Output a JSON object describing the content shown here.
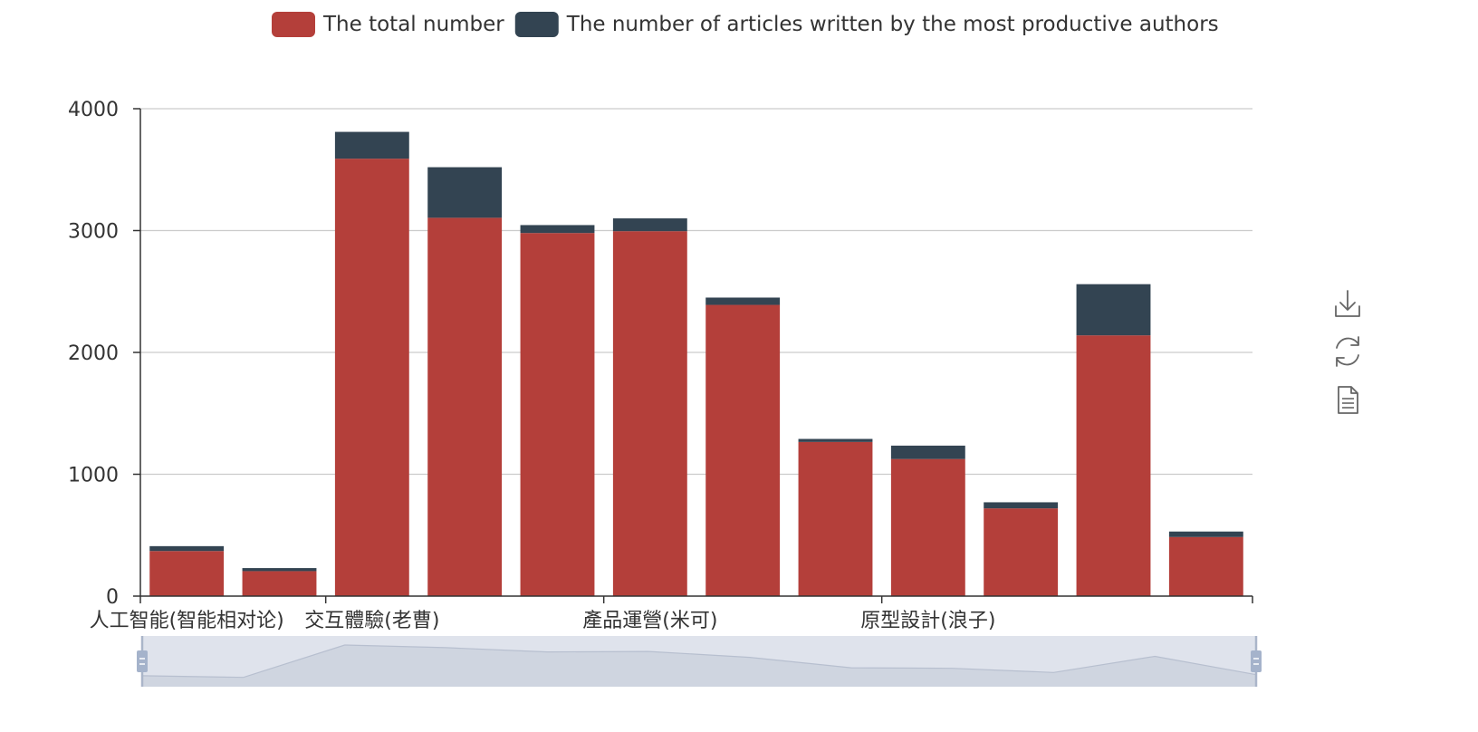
{
  "chart_data": {
    "type": "bar",
    "stacked": true,
    "categories": [
      "人工智能(智能相对论)",
      "",
      "交互體驗(老曹)",
      "",
      "",
      "產品運營(米可)",
      "",
      "",
      "原型設計(浪子)",
      "",
      "",
      ""
    ],
    "visible_axis_labels": [
      "人工智能(智能相对论)",
      "交互體驗(老曹)",
      "產品運營(米可)",
      "原型設計(浪子)"
    ],
    "series": [
      {
        "name": "The total number",
        "color": "#b43f3a",
        "values": [
          370,
          205,
          3590,
          3105,
          2980,
          2995,
          2390,
          1265,
          1125,
          720,
          2140,
          485
        ]
      },
      {
        "name": "The number of articles written by the most productive authors",
        "color": "#334452",
        "values": [
          40,
          25,
          220,
          415,
          65,
          105,
          60,
          25,
          110,
          50,
          420,
          45
        ]
      }
    ],
    "ylim": [
      0,
      4000
    ],
    "yticks": [
      "0",
      "1000",
      "2000",
      "3000",
      "4000"
    ],
    "grid": true,
    "legend_position": "top-center",
    "datazoom": {
      "enabled": true,
      "range": "full"
    }
  },
  "toolbox": {
    "items": [
      {
        "name": "save-image-icon"
      },
      {
        "name": "restore-icon"
      },
      {
        "name": "data-view-icon"
      }
    ]
  }
}
